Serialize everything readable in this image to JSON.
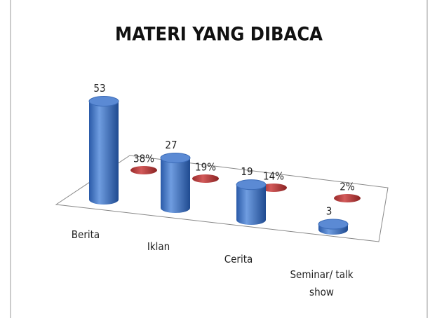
{
  "chart_data": {
    "type": "cylinder-bar",
    "title": "MATERI YANG DIBACA",
    "categories": [
      "Berita",
      "Iklan",
      "Cerita",
      "Seminar/ talk show"
    ],
    "series": [
      {
        "color": "#3a6fc0",
        "values": [
          53,
          27,
          19,
          3
        ]
      },
      {
        "color": "#b23a3a",
        "values": [
          38,
          19,
          14,
          2
        ],
        "value_labels": [
          "38%",
          "19%",
          "14%",
          "2%"
        ]
      }
    ]
  }
}
